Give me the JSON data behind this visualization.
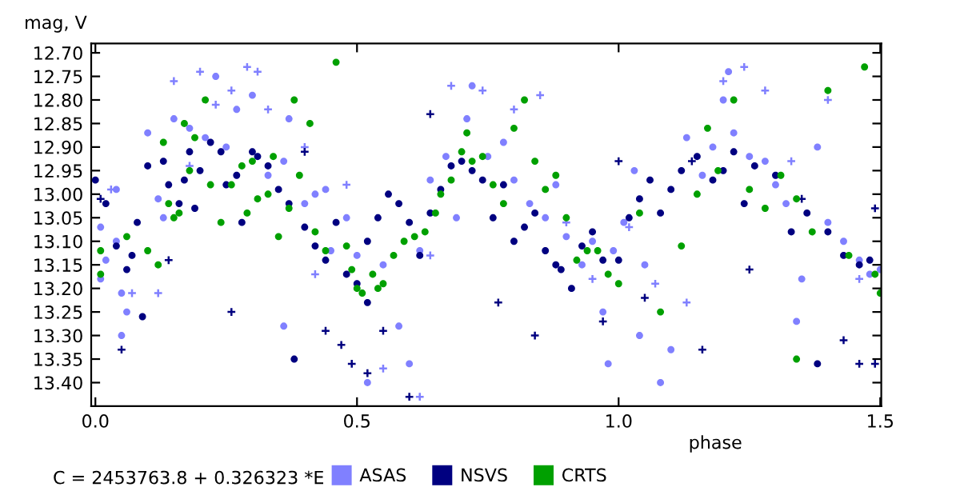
{
  "chart_data": {
    "type": "scatter",
    "ylabel": "mag, V",
    "xlabel": "phase",
    "annotations": [
      "C = 2453763.8 + 0.326323 *E"
    ],
    "xlim": [
      -0.008,
      1.502
    ],
    "ylim": [
      13.45,
      12.68
    ],
    "xticks": [
      {
        "value": 0,
        "label": "0.0"
      },
      0.5,
      {
        "value": 1,
        "label": "1.0"
      },
      1.5
    ],
    "yticks": [
      {
        "value": 12.7,
        "label": "12.70"
      },
      12.75,
      {
        "value": 12.8,
        "label": "12.80"
      },
      12.85,
      {
        "value": 12.9,
        "label": "12.90"
      },
      12.95,
      {
        "value": 13.0,
        "label": "13.00"
      },
      13.05,
      {
        "value": 13.1,
        "label": "13.10"
      },
      13.15,
      {
        "value": 13.2,
        "label": "13.20"
      },
      13.25,
      {
        "value": 13.3,
        "label": "13.30"
      },
      13.35,
      {
        "value": 13.4,
        "label": "13.40"
      }
    ],
    "grid": false,
    "legend": "bottom",
    "series": [
      {
        "color": "#8080ff",
        "marker": "cross",
        "x": [
          0.03,
          0.07,
          0.12,
          0.15,
          0.18,
          0.2,
          0.23,
          0.26,
          0.29,
          0.31,
          0.33,
          0.4,
          0.42,
          0.48,
          0.55,
          0.62,
          0.64,
          0.68,
          0.74,
          0.8,
          0.85,
          0.9,
          0.95,
          1.02,
          1.07,
          1.13,
          1.2,
          1.24,
          1.28,
          1.33,
          1.4,
          1.46
        ],
        "values": [
          12.99,
          13.21,
          13.21,
          12.76,
          12.94,
          12.74,
          12.81,
          12.78,
          12.73,
          12.74,
          12.82,
          12.9,
          13.17,
          12.98,
          13.37,
          13.43,
          13.13,
          12.77,
          12.78,
          12.82,
          12.79,
          13.06,
          13.18,
          13.07,
          13.19,
          13.23,
          12.76,
          12.73,
          12.78,
          12.93,
          12.8,
          13.18
        ]
      },
      {
        "color": "#000080",
        "marker": "cross",
        "x": [
          0.01,
          0.05,
          0.14,
          0.26,
          0.4,
          0.44,
          0.47,
          0.49,
          0.52,
          0.55,
          0.6,
          0.64,
          0.77,
          0.84,
          0.97,
          1.0,
          1.05,
          1.14,
          1.16,
          1.25,
          1.35,
          1.43,
          1.46,
          1.49,
          1.49
        ],
        "values": [
          13.01,
          13.33,
          13.14,
          13.25,
          12.91,
          13.29,
          13.32,
          13.36,
          13.38,
          13.29,
          13.43,
          12.83,
          13.23,
          13.3,
          13.27,
          12.93,
          13.22,
          12.93,
          13.33,
          13.16,
          13.01,
          13.31,
          13.36,
          13.36,
          13.03
        ]
      },
      {
        "name": "ASAS",
        "color": "#8080ff",
        "marker": "circle",
        "x": [
          0.01,
          0.01,
          0.02,
          0.04,
          0.05,
          0.05,
          0.06,
          0.04,
          0.1,
          0.12,
          0.13,
          0.15,
          0.18,
          0.21,
          0.23,
          0.25,
          0.27,
          0.3,
          0.33,
          0.36,
          0.37,
          0.4,
          0.42,
          0.45,
          0.36,
          0.44,
          0.48,
          0.5,
          0.52,
          0.55,
          0.58,
          0.6,
          0.62,
          0.64,
          0.67,
          0.69,
          0.72,
          0.71,
          0.75,
          0.78,
          0.8,
          0.83,
          0.86,
          0.88,
          0.9,
          0.93,
          0.95,
          0.97,
          0.98,
          0.99,
          1.01,
          1.03,
          1.04,
          1.05,
          1.08,
          1.1,
          1.13,
          1.16,
          1.18,
          1.2,
          1.21,
          1.22,
          1.25,
          1.28,
          1.3,
          1.32,
          1.34,
          1.35,
          1.38,
          1.4,
          1.43,
          1.46,
          1.48,
          1.5
        ],
        "values": [
          13.07,
          13.18,
          13.14,
          13.1,
          13.21,
          13.3,
          13.25,
          12.99,
          12.87,
          13.01,
          13.05,
          12.84,
          12.86,
          12.88,
          12.75,
          12.9,
          12.82,
          12.79,
          12.96,
          12.93,
          12.84,
          13.02,
          13.0,
          13.12,
          13.28,
          12.99,
          13.05,
          13.13,
          13.4,
          13.15,
          13.28,
          13.36,
          13.12,
          12.97,
          12.92,
          13.05,
          12.77,
          12.84,
          12.92,
          12.89,
          12.97,
          13.02,
          13.05,
          12.98,
          13.09,
          13.15,
          13.1,
          13.25,
          13.36,
          13.12,
          13.06,
          12.95,
          13.3,
          13.15,
          13.4,
          13.33,
          12.88,
          12.96,
          12.9,
          12.8,
          12.74,
          12.87,
          12.92,
          12.93,
          12.98,
          13.02,
          13.27,
          13.18,
          12.9,
          13.06,
          13.1,
          13.14,
          13.17,
          13.16
        ]
      },
      {
        "name": "NSVS",
        "color": "#000080",
        "marker": "circle",
        "x": [
          0.0,
          0.02,
          0.04,
          0.06,
          0.07,
          0.08,
          0.09,
          0.1,
          0.13,
          0.14,
          0.16,
          0.17,
          0.18,
          0.19,
          0.2,
          0.22,
          0.24,
          0.25,
          0.27,
          0.28,
          0.3,
          0.31,
          0.33,
          0.35,
          0.37,
          0.38,
          0.4,
          0.42,
          0.44,
          0.46,
          0.48,
          0.5,
          0.52,
          0.52,
          0.54,
          0.56,
          0.58,
          0.6,
          0.62,
          0.64,
          0.66,
          0.68,
          0.7,
          0.72,
          0.74,
          0.76,
          0.78,
          0.8,
          0.82,
          0.84,
          0.86,
          0.88,
          0.89,
          0.91,
          0.93,
          0.95,
          0.97,
          1.0,
          1.02,
          1.04,
          1.06,
          1.08,
          1.1,
          1.12,
          1.15,
          1.18,
          1.2,
          1.22,
          1.24,
          1.26,
          1.3,
          1.33,
          1.36,
          1.38,
          1.4,
          1.43,
          1.46,
          1.48
        ],
        "values": [
          12.97,
          13.02,
          13.11,
          13.16,
          13.13,
          13.06,
          13.26,
          12.94,
          12.93,
          12.98,
          13.02,
          12.97,
          12.91,
          13.03,
          12.95,
          12.89,
          12.91,
          12.98,
          12.96,
          13.06,
          12.91,
          12.92,
          12.94,
          12.99,
          13.02,
          13.35,
          13.07,
          13.11,
          13.14,
          13.06,
          13.17,
          13.19,
          13.23,
          13.1,
          13.05,
          13.0,
          13.02,
          13.06,
          13.13,
          13.04,
          12.99,
          12.94,
          12.93,
          12.95,
          12.97,
          13.05,
          12.98,
          13.1,
          13.07,
          13.04,
          13.12,
          13.15,
          13.16,
          13.2,
          13.11,
          13.08,
          13.14,
          13.14,
          13.05,
          13.01,
          12.97,
          13.04,
          12.99,
          12.95,
          12.92,
          12.97,
          12.95,
          12.91,
          13.02,
          12.94,
          12.96,
          13.08,
          13.04,
          13.36,
          13.08,
          13.13,
          13.15,
          13.14
        ]
      },
      {
        "name": "CRTS",
        "color": "#00a000",
        "marker": "circle",
        "x": [
          0.01,
          0.01,
          0.06,
          0.1,
          0.12,
          0.13,
          0.14,
          0.15,
          0.16,
          0.17,
          0.18,
          0.19,
          0.21,
          0.22,
          0.24,
          0.26,
          0.28,
          0.29,
          0.3,
          0.31,
          0.33,
          0.34,
          0.35,
          0.37,
          0.38,
          0.39,
          0.41,
          0.42,
          0.44,
          0.46,
          0.48,
          0.49,
          0.5,
          0.51,
          0.53,
          0.54,
          0.55,
          0.57,
          0.59,
          0.61,
          0.63,
          0.65,
          0.66,
          0.68,
          0.7,
          0.71,
          0.72,
          0.74,
          0.76,
          0.78,
          0.8,
          0.82,
          0.84,
          0.86,
          0.88,
          0.9,
          0.92,
          0.94,
          0.96,
          0.98,
          1.0,
          1.04,
          1.08,
          1.12,
          1.15,
          1.17,
          1.19,
          1.22,
          1.25,
          1.28,
          1.31,
          1.34,
          1.37,
          1.4,
          1.44,
          1.47,
          1.49,
          1.5,
          1.34
        ],
        "values": [
          13.12,
          13.17,
          13.09,
          13.12,
          13.15,
          12.89,
          13.02,
          13.05,
          13.04,
          12.85,
          12.95,
          12.88,
          12.8,
          12.98,
          13.06,
          12.98,
          12.94,
          13.04,
          12.93,
          13.01,
          13.0,
          12.92,
          13.09,
          13.03,
          12.8,
          12.96,
          12.85,
          13.08,
          13.12,
          12.72,
          13.11,
          13.16,
          13.2,
          13.21,
          13.17,
          13.2,
          13.19,
          13.13,
          13.1,
          13.09,
          13.08,
          13.04,
          13.0,
          12.97,
          12.91,
          12.87,
          12.93,
          12.92,
          12.98,
          13.02,
          12.86,
          12.8,
          12.93,
          12.99,
          12.96,
          13.05,
          13.14,
          13.12,
          13.12,
          13.17,
          13.19,
          13.04,
          13.25,
          13.11,
          13.0,
          12.86,
          12.95,
          12.8,
          12.99,
          13.03,
          12.96,
          13.01,
          13.08,
          12.78,
          13.13,
          12.73,
          13.17,
          13.21,
          13.35
        ]
      }
    ]
  }
}
